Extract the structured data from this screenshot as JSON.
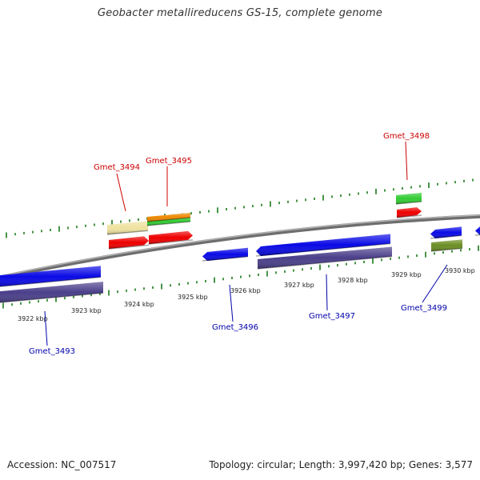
{
  "title": "Geobacter metallireducens GS-15, complete genome",
  "footer": {
    "accession": "Accession: NC_007517",
    "summary": "Topology: circular; Length: 3,997,420 bp; Genes: 3,577"
  },
  "colors": {
    "label_red": "#cc0000",
    "label_blue": "#0000aa",
    "tick_green": "#1a7a1a",
    "backbone": "#7a7a7a",
    "gene_red": "#ee0000",
    "gene_blue": "#0a0ae6",
    "gene_purple": "#4a3f8a",
    "gene_green": "#33cc33",
    "gene_orange": "#ee8800",
    "gene_beige": "#efe2a0",
    "gene_olive": "#6b8e23"
  },
  "scale_labels": [
    "3922 kbp",
    "3923 kbp",
    "3924 kbp",
    "3925 kbp",
    "3926 kbp",
    "3927 kbp",
    "3928 kbp",
    "3929 kbp",
    "3930 kbp"
  ],
  "genes": {
    "gmet_3493": "Gmet_3493",
    "gmet_3494": "Gmet_3494",
    "gmet_3495": "Gmet_3495",
    "gmet_3496": "Gmet_3496",
    "gmet_3497": "Gmet_3497",
    "gmet_3498": "Gmet_3498",
    "gmet_3499": "Gmet_3499"
  }
}
